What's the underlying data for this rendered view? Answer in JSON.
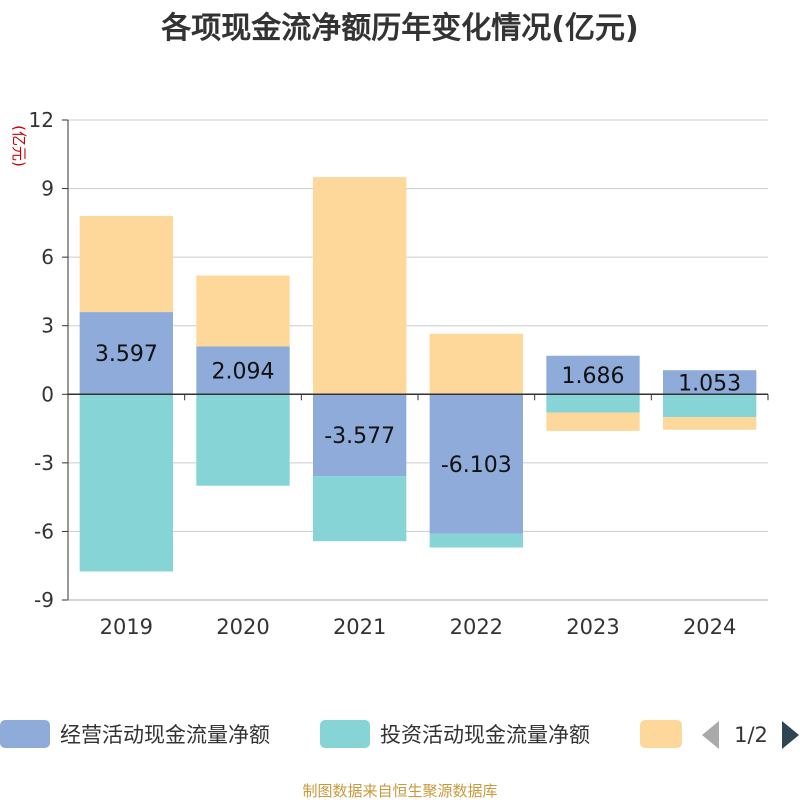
{
  "chart_data": {
    "type": "bar",
    "stacked": true,
    "title": "各项现金流净额历年变化情况(亿元)",
    "ylabel": "(亿元)",
    "xlabel": "",
    "ylim": [
      -9,
      12
    ],
    "yticks": [
      12,
      9,
      6,
      3,
      0,
      -3,
      -6,
      -9
    ],
    "categories": [
      "2019",
      "2020",
      "2021",
      "2022",
      "2023",
      "2024"
    ],
    "series": [
      {
        "name": "经营活动现金流量净额",
        "color": "#8eabd9",
        "values": [
          3.597,
          2.094,
          -3.577,
          -6.103,
          1.686,
          1.053
        ],
        "labels": [
          "3.597",
          "2.094",
          "-3.577",
          "-6.103",
          "1.686",
          "1.053"
        ]
      },
      {
        "name": "投资活动现金流量净额",
        "color": "#86d4d6",
        "values": [
          -7.75,
          -4.0,
          -2.85,
          -0.6,
          -0.8,
          -1.0
        ]
      },
      {
        "name": "",
        "color": "#fed89a",
        "values": [
          4.2,
          3.1,
          9.5,
          2.65,
          -0.8,
          -0.55
        ]
      }
    ],
    "legend_position": "bottom",
    "grid": true
  },
  "legend": {
    "page": "1/2"
  },
  "source": "制图数据来自恒生聚源数据库"
}
